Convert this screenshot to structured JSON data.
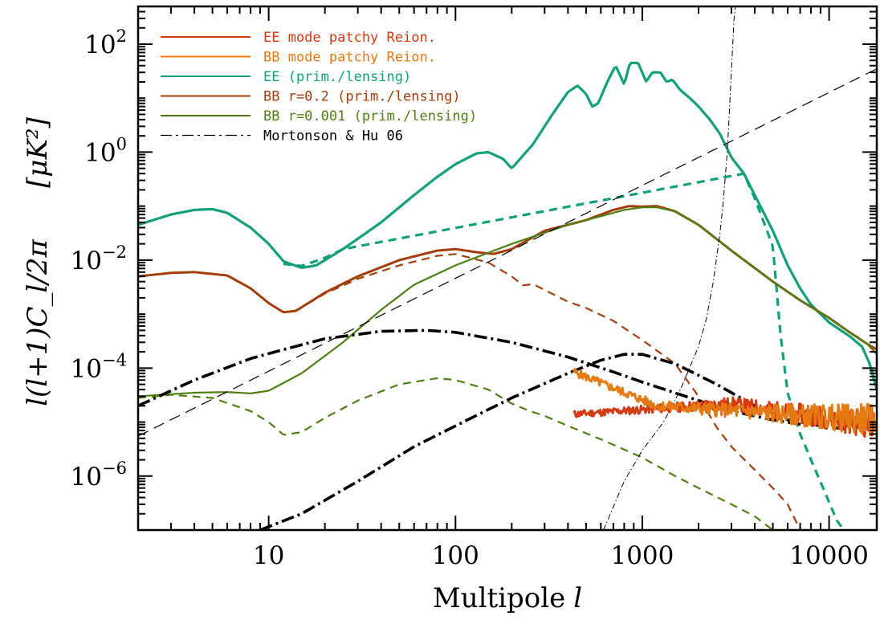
{
  "chart_data": {
    "type": "line",
    "title": "",
    "xlabel": "Multipole",
    "xlabel_symbol": "l",
    "ylabel_math": "l(l+1)C_l/2π",
    "yunit_math": "[μK²]",
    "x_scale": "log",
    "y_scale": "log",
    "xlim": [
      2,
      18000
    ],
    "ylim": [
      1e-07,
      500
    ],
    "x_ticks": [
      {
        "value": 10,
        "label": "10"
      },
      {
        "value": 100,
        "label": "100"
      },
      {
        "value": 1000,
        "label": "1000"
      },
      {
        "value": 10000,
        "label": "10000"
      }
    ],
    "y_ticks": [
      {
        "value": 1e-06,
        "base": "10",
        "exp": "−6"
      },
      {
        "value": 0.0001,
        "base": "10",
        "exp": "−4"
      },
      {
        "value": 0.01,
        "base": "10",
        "exp": "−2"
      },
      {
        "value": 1,
        "base": "10",
        "exp": "0"
      },
      {
        "value": 100,
        "base": "10",
        "exp": "2"
      }
    ],
    "grid": false,
    "legend_position": "top-left",
    "legend": [
      {
        "label": "EE mode patchy Reion.",
        "color": "#d23a10",
        "style": "solid"
      },
      {
        "label": "BB mode patchy Reion.",
        "color": "#e67a12",
        "style": "solid"
      },
      {
        "label": "EE (prim./lensing)",
        "color": "#12a07a",
        "style": "solid"
      },
      {
        "label": "BB r=0.2 (prim./lensing)",
        "color": "#a33d0c",
        "style": "solid"
      },
      {
        "label": "BB r=0.001 (prim./lensing)",
        "color": "#4f7f12",
        "style": "solid"
      },
      {
        "label": "Mortonson & Hu 06",
        "color": "#000000",
        "style": "dashdot"
      }
    ],
    "series": [
      {
        "role": "EE primordial+lensing",
        "color": "#12a07a",
        "style": "solid",
        "width": 3.2,
        "points": [
          [
            2,
            0.045
          ],
          [
            3,
            0.07
          ],
          [
            4,
            0.085
          ],
          [
            5,
            0.088
          ],
          [
            6,
            0.075
          ],
          [
            8,
            0.04
          ],
          [
            10,
            0.02
          ],
          [
            12,
            0.0095
          ],
          [
            15,
            0.0072
          ],
          [
            18,
            0.008
          ],
          [
            25,
            0.016
          ],
          [
            40,
            0.05
          ],
          [
            60,
            0.16
          ],
          [
            80,
            0.35
          ],
          [
            100,
            0.6
          ],
          [
            130,
            0.95
          ],
          [
            150,
            1.0
          ],
          [
            180,
            0.75
          ],
          [
            200,
            0.5
          ],
          [
            260,
            1.4
          ],
          [
            330,
            5
          ],
          [
            400,
            13
          ],
          [
            450,
            17
          ],
          [
            500,
            12
          ],
          [
            540,
            7
          ],
          [
            580,
            8
          ],
          [
            650,
            20
          ],
          [
            720,
            40
          ],
          [
            800,
            18
          ],
          [
            860,
            45
          ],
          [
            950,
            45
          ],
          [
            1050,
            20
          ],
          [
            1130,
            30
          ],
          [
            1250,
            30
          ],
          [
            1350,
            20
          ],
          [
            1450,
            22
          ],
          [
            1600,
            14
          ],
          [
            1800,
            10
          ],
          [
            2000,
            7
          ],
          [
            2300,
            4
          ],
          [
            2600,
            2.2
          ],
          [
            3000,
            0.8
          ],
          [
            3500,
            0.4
          ],
          [
            4000,
            0.16
          ],
          [
            5000,
            0.035
          ],
          [
            6000,
            0.008
          ],
          [
            7000,
            0.003
          ],
          [
            8000,
            0.0015
          ],
          [
            10000,
            0.0007
          ],
          [
            13000,
            0.00038
          ],
          [
            15000,
            0.00025
          ],
          [
            16500,
            0.00012
          ],
          [
            18000,
            4e-05
          ]
        ]
      },
      {
        "role": "EE primordial only",
        "color": "#12a07a",
        "style": "dashed",
        "width": 3.2,
        "points": [
          [
            12,
            0.0085
          ],
          [
            15,
            0.0078
          ],
          [
            20,
            0.011
          ],
          [
            25,
            0.016
          ],
          [
            3500,
            0.4
          ],
          [
            4000,
            0.14
          ],
          [
            5000,
            0.018
          ],
          [
            5500,
            0.0004
          ],
          [
            6000,
            3.5e-05
          ],
          [
            7000,
            6e-06
          ],
          [
            8000,
            2e-06
          ],
          [
            9500,
            5e-07
          ],
          [
            11000,
            1.5e-07
          ],
          [
            12000,
            1e-07
          ]
        ]
      },
      {
        "role": "BB r=0.2 primordial+lensing",
        "color": "#a33d0c",
        "style": "solid",
        "width": 3,
        "points": [
          [
            2,
            0.005
          ],
          [
            3,
            0.0058
          ],
          [
            4,
            0.006
          ],
          [
            6,
            0.0052
          ],
          [
            8,
            0.003
          ],
          [
            10,
            0.0016
          ],
          [
            12,
            0.00108
          ],
          [
            14,
            0.00115
          ],
          [
            20,
            0.0025
          ],
          [
            30,
            0.005
          ],
          [
            50,
            0.01
          ],
          [
            80,
            0.015
          ],
          [
            100,
            0.016
          ],
          [
            130,
            0.014
          ],
          [
            160,
            0.013
          ],
          [
            200,
            0.016
          ],
          [
            300,
            0.035
          ],
          [
            500,
            0.055
          ],
          [
            700,
            0.085
          ],
          [
            850,
            0.1
          ],
          [
            1000,
            0.098
          ],
          [
            1200,
            0.1
          ],
          [
            1500,
            0.08
          ],
          [
            2000,
            0.045
          ],
          [
            3000,
            0.015
          ],
          [
            5000,
            0.004
          ],
          [
            7000,
            0.0018
          ],
          [
            10000,
            0.00085
          ],
          [
            13000,
            0.00045
          ],
          [
            16000,
            0.00028
          ],
          [
            18000,
            0.00022
          ]
        ]
      },
      {
        "role": "BB r=0.2 primordial only",
        "color": "#a33d0c",
        "style": "dashed",
        "width": 2.2,
        "points": [
          [
            14,
            0.00115
          ],
          [
            20,
            0.0024
          ],
          [
            30,
            0.0045
          ],
          [
            50,
            0.008
          ],
          [
            80,
            0.012
          ],
          [
            100,
            0.013
          ],
          [
            150,
            0.009
          ],
          [
            200,
            0.005
          ],
          [
            230,
            0.0034
          ],
          [
            260,
            0.0036
          ],
          [
            300,
            0.0028
          ],
          [
            400,
            0.0017
          ],
          [
            500,
            0.0013
          ],
          [
            700,
            0.00075
          ],
          [
            1000,
            0.00033
          ],
          [
            1500,
            0.00012
          ],
          [
            2000,
            3e-05
          ],
          [
            2500,
            8e-06
          ],
          [
            3000,
            3.5e-06
          ],
          [
            4000,
            1.3e-06
          ],
          [
            5000,
            6e-07
          ],
          [
            6000,
            3e-07
          ],
          [
            7000,
            1e-07
          ]
        ]
      },
      {
        "role": "BB r=0.001 primordial+lensing",
        "color": "#4f7f12",
        "style": "solid",
        "width": 2.2,
        "points": [
          [
            2,
            3e-05
          ],
          [
            4,
            3.5e-05
          ],
          [
            6,
            3.6e-05
          ],
          [
            8,
            3.4e-05
          ],
          [
            10,
            3.8e-05
          ],
          [
            15,
            8e-05
          ],
          [
            25,
            0.0003
          ],
          [
            40,
            0.0012
          ],
          [
            60,
            0.0035
          ],
          [
            100,
            0.008
          ],
          [
            200,
            0.02
          ],
          [
            400,
            0.045
          ],
          [
            600,
            0.065
          ],
          [
            800,
            0.085
          ],
          [
            1000,
            0.095
          ],
          [
            1200,
            0.095
          ],
          [
            1500,
            0.08
          ],
          [
            2000,
            0.045
          ],
          [
            3000,
            0.015
          ],
          [
            5000,
            0.004
          ],
          [
            7000,
            0.0018
          ],
          [
            10000,
            0.00085
          ],
          [
            13000,
            0.00045
          ],
          [
            16000,
            0.00028
          ],
          [
            18000,
            0.00018
          ]
        ]
      },
      {
        "role": "BB r=0.001 primordial only",
        "color": "#4f7f12",
        "style": "dashed",
        "width": 2.2,
        "points": [
          [
            2,
            2.8e-05
          ],
          [
            3,
            3.2e-05
          ],
          [
            5,
            2.8e-05
          ],
          [
            8,
            1.6e-05
          ],
          [
            10,
            1e-05
          ],
          [
            12,
            5.8e-06
          ],
          [
            15,
            6.5e-06
          ],
          [
            20,
            1.2e-05
          ],
          [
            30,
            2.5e-05
          ],
          [
            50,
            5e-05
          ],
          [
            80,
            6.5e-05
          ],
          [
            100,
            6e-05
          ],
          [
            150,
            4e-05
          ],
          [
            200,
            2.2e-05
          ],
          [
            250,
            1.6e-05
          ],
          [
            300,
            1.3e-05
          ],
          [
            400,
            8.5e-06
          ],
          [
            600,
            4.8e-06
          ],
          [
            1000,
            2.2e-06
          ],
          [
            1500,
            1e-06
          ],
          [
            2000,
            6e-07
          ],
          [
            3000,
            3e-07
          ],
          [
            4000,
            1.8e-07
          ],
          [
            5000,
            1e-07
          ]
        ]
      },
      {
        "role": "Mortonson & Hu 06 (upper)",
        "color": "#000000",
        "style": "dashdot",
        "width": 3.6,
        "points": [
          [
            2,
            2e-05
          ],
          [
            4,
            6e-05
          ],
          [
            8,
            0.00015
          ],
          [
            12,
            0.00022
          ],
          [
            20,
            0.00035
          ],
          [
            40,
            0.00048
          ],
          [
            70,
            0.0005
          ],
          [
            100,
            0.00046
          ],
          [
            200,
            0.0003
          ],
          [
            400,
            0.00016
          ],
          [
            700,
            8.5e-05
          ],
          [
            1000,
            5.5e-05
          ],
          [
            2000,
            2.5e-05
          ],
          [
            3000,
            1.6e-05
          ],
          [
            5000,
            1.1e-05
          ],
          [
            8000,
            8.5e-06
          ]
        ]
      },
      {
        "role": "Mortonson & Hu 06 (lower)",
        "color": "#000000",
        "style": "dashdot",
        "width": 3.6,
        "points": [
          [
            9,
            1e-07
          ],
          [
            15,
            2e-07
          ],
          [
            30,
            8e-07
          ],
          [
            60,
            3.5e-06
          ],
          [
            100,
            8.5e-06
          ],
          [
            200,
            2.8e-05
          ],
          [
            400,
            8e-05
          ],
          [
            600,
            0.00014
          ],
          [
            800,
            0.00018
          ],
          [
            1000,
            0.00018
          ],
          [
            1500,
            0.00012
          ],
          [
            2500,
            5e-05
          ],
          [
            4000,
            2e-05
          ],
          [
            6000,
            1.1e-05
          ],
          [
            9000,
            8.5e-06
          ],
          [
            12000,
            7.5e-06
          ]
        ]
      },
      {
        "role": "thin dashed rising line",
        "color": "#000000",
        "style": "longdash",
        "width": 1.2,
        "points": [
          [
            2,
            5.5e-06
          ],
          [
            18000,
            35
          ]
        ]
      },
      {
        "role": "thin dash-dot steep curve",
        "color": "#000000",
        "style": "dashdot-thin",
        "width": 1,
        "points": [
          [
            620,
            1e-07
          ],
          [
            800,
            8e-07
          ],
          [
            1000,
            3e-06
          ],
          [
            1300,
            1e-05
          ],
          [
            1600,
            4e-05
          ],
          [
            2000,
            0.00025
          ],
          [
            2200,
            0.0008
          ],
          [
            2400,
            0.004
          ],
          [
            2600,
            0.03
          ],
          [
            2700,
            0.1
          ],
          [
            2850,
            1
          ],
          [
            2950,
            10
          ],
          [
            3050,
            100
          ],
          [
            3100,
            300
          ],
          [
            3150,
            500
          ]
        ]
      },
      {
        "role": "EE patchy reionization",
        "color": "#d23a10",
        "style": "solid",
        "width": 3,
        "noise": {
          "seed": 11,
          "xmin": 430,
          "xmax": 17500,
          "y_start": 1.4e-05,
          "y_mid": 2.2e-05,
          "x_mid": 3000,
          "y_end": 9e-06,
          "scatter": 0.45
        }
      },
      {
        "role": "BB patchy reionization",
        "color": "#e67a12",
        "style": "solid",
        "width": 3,
        "noise": {
          "seed": 5,
          "xmin": 430,
          "xmax": 17500,
          "y_start": 8.5e-05,
          "y_mid": 2e-05,
          "x_mid": 1200,
          "y_end": 1.1e-05,
          "scatter": 0.5
        }
      }
    ]
  }
}
